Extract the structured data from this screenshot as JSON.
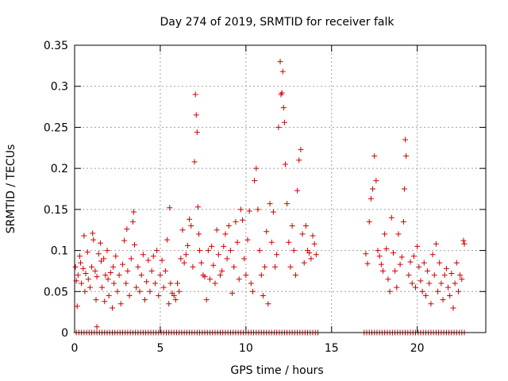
{
  "chart_data": {
    "type": "scatter",
    "title": "Day 274 of 2019, SRMTID for receiver falk",
    "xlabel": "GPS time / hours",
    "ylabel": "SRMTID / TECUs",
    "xlim": [
      0,
      24
    ],
    "ylim": [
      0,
      0.35
    ],
    "xticks": [
      0,
      5,
      10,
      15,
      20
    ],
    "xtick_labels": [
      "0",
      "5",
      "10",
      "15",
      "20"
    ],
    "yticks": [
      0,
      0.05,
      0.1,
      0.15,
      0.2,
      0.25,
      0.3,
      0.35
    ],
    "ytick_labels": [
      "0",
      "0.05",
      "0.1",
      "0.15",
      "0.2",
      "0.25",
      "0.3",
      "0.35"
    ],
    "grid": true,
    "marker": "+",
    "color": "#cc0000",
    "series": [
      {
        "name": "SRMTID",
        "points": [
          [
            0.05,
            0.08
          ],
          [
            0.1,
            0.063
          ],
          [
            0.15,
            0.032
          ],
          [
            0.2,
            0.07
          ],
          [
            0.3,
            0.093
          ],
          [
            0.35,
            0.085
          ],
          [
            0.4,
            0.06
          ],
          [
            0.5,
            0.078
          ],
          [
            0.55,
            0.118
          ],
          [
            0.6,
            0.05
          ],
          [
            0.65,
            0.072
          ],
          [
            0.75,
            0.098
          ],
          [
            0.8,
            0.065
          ],
          [
            0.9,
            0.055
          ],
          [
            1.0,
            0.08
          ],
          [
            1.05,
            0.121
          ],
          [
            1.1,
            0.113
          ],
          [
            1.2,
            0.075
          ],
          [
            1.25,
            0.04
          ],
          [
            1.3,
            0.068
          ],
          [
            1.4,
            0.096
          ],
          [
            1.5,
            0.109
          ],
          [
            1.55,
            0.087
          ],
          [
            1.6,
            0.055
          ],
          [
            1.7,
            0.09
          ],
          [
            1.75,
            0.038
          ],
          [
            1.8,
            0.07
          ],
          [
            1.9,
            0.1
          ],
          [
            1.95,
            0.065
          ],
          [
            2.0,
            0.045
          ],
          [
            2.1,
            0.073
          ],
          [
            2.2,
            0.03
          ],
          [
            2.25,
            0.08
          ],
          [
            2.3,
            0.06
          ],
          [
            2.4,
            0.093
          ],
          [
            2.5,
            0.05
          ],
          [
            2.6,
            0.07
          ],
          [
            2.7,
            0.035
          ],
          [
            2.8,
            0.083
          ],
          [
            2.9,
            0.112
          ],
          [
            3.0,
            0.06
          ],
          [
            3.05,
            0.126
          ],
          [
            3.1,
            0.075
          ],
          [
            3.2,
            0.045
          ],
          [
            3.3,
            0.09
          ],
          [
            3.4,
            0.135
          ],
          [
            3.45,
            0.147
          ],
          [
            3.5,
            0.107
          ],
          [
            3.6,
            0.055
          ],
          [
            3.7,
            0.08
          ],
          [
            3.8,
            0.05
          ],
          [
            3.9,
            0.07
          ],
          [
            4.0,
            0.095
          ],
          [
            4.1,
            0.04
          ],
          [
            4.2,
            0.062
          ],
          [
            4.3,
            0.088
          ],
          [
            4.4,
            0.05
          ],
          [
            4.5,
            0.075
          ],
          [
            4.6,
            0.093
          ],
          [
            4.7,
            0.06
          ],
          [
            4.8,
            0.1
          ],
          [
            4.9,
            0.045
          ],
          [
            5.0,
            0.07
          ],
          [
            5.1,
            0.088
          ],
          [
            5.2,
            0.055
          ],
          [
            5.3,
            0.075
          ],
          [
            5.4,
            0.113
          ],
          [
            5.5,
            0.035
          ],
          [
            5.55,
            0.152
          ],
          [
            5.6,
            0.06
          ],
          [
            5.7,
            0.048
          ],
          [
            5.8,
            0.045
          ],
          [
            5.9,
            0.04
          ],
          [
            6.0,
            0.06
          ],
          [
            6.1,
            0.05
          ],
          [
            6.2,
            0.09
          ],
          [
            6.3,
            0.125
          ],
          [
            6.4,
            0.085
          ],
          [
            6.5,
            0.095
          ],
          [
            6.6,
            0.106
          ],
          [
            6.7,
            0.138
          ],
          [
            6.8,
            0.13
          ],
          [
            6.9,
            0.08
          ],
          [
            7.0,
            0.208
          ],
          [
            7.05,
            0.29
          ],
          [
            7.1,
            0.265
          ],
          [
            7.15,
            0.244
          ],
          [
            7.2,
            0.153
          ],
          [
            7.25,
            0.12
          ],
          [
            7.3,
            0.1
          ],
          [
            7.4,
            0.085
          ],
          [
            7.5,
            0.07
          ],
          [
            7.6,
            0.068
          ],
          [
            7.7,
            0.04
          ],
          [
            7.8,
            0.1
          ],
          [
            7.9,
            0.065
          ],
          [
            8.0,
            0.105
          ],
          [
            8.1,
            0.082
          ],
          [
            8.2,
            0.06
          ],
          [
            8.3,
            0.125
          ],
          [
            8.4,
            0.095
          ],
          [
            8.5,
            0.07
          ],
          [
            8.6,
            0.075
          ],
          [
            8.7,
            0.105
          ],
          [
            8.8,
            0.12
          ],
          [
            8.9,
            0.09
          ],
          [
            9.0,
            0.13
          ],
          [
            9.1,
            0.1
          ],
          [
            9.2,
            0.048
          ],
          [
            9.3,
            0.08
          ],
          [
            9.4,
            0.135
          ],
          [
            9.5,
            0.11
          ],
          [
            9.6,
            0.065
          ],
          [
            9.7,
            0.15
          ],
          [
            9.8,
            0.137
          ],
          [
            9.9,
            0.09
          ],
          [
            10.0,
            0.07
          ],
          [
            10.1,
            0.113
          ],
          [
            10.2,
            0.148
          ],
          [
            10.3,
            0.06
          ],
          [
            10.4,
            0.05
          ],
          [
            10.5,
            0.185
          ],
          [
            10.6,
            0.2
          ],
          [
            10.7,
            0.15
          ],
          [
            10.8,
            0.1
          ],
          [
            10.9,
            0.07
          ],
          [
            11.0,
            0.045
          ],
          [
            11.1,
            0.08
          ],
          [
            11.2,
            0.123
          ],
          [
            11.3,
            0.035
          ],
          [
            11.4,
            0.157
          ],
          [
            11.5,
            0.11
          ],
          [
            11.6,
            0.147
          ],
          [
            11.7,
            0.08
          ],
          [
            11.8,
            0.095
          ],
          [
            11.9,
            0.25
          ],
          [
            12.0,
            0.33
          ],
          [
            12.05,
            0.29
          ],
          [
            12.1,
            0.292
          ],
          [
            12.15,
            0.318
          ],
          [
            12.2,
            0.274
          ],
          [
            12.25,
            0.256
          ],
          [
            12.3,
            0.205
          ],
          [
            12.4,
            0.157
          ],
          [
            12.5,
            0.11
          ],
          [
            12.6,
            0.08
          ],
          [
            12.7,
            0.13
          ],
          [
            12.8,
            0.1
          ],
          [
            12.9,
            0.07
          ],
          [
            13.0,
            0.173
          ],
          [
            13.1,
            0.21
          ],
          [
            13.2,
            0.223
          ],
          [
            13.3,
            0.12
          ],
          [
            13.4,
            0.085
          ],
          [
            13.5,
            0.13
          ],
          [
            13.6,
            0.1
          ],
          [
            13.7,
            0.097
          ],
          [
            13.8,
            0.09
          ],
          [
            13.9,
            0.118
          ],
          [
            14.0,
            0.108
          ],
          [
            14.1,
            0.095
          ],
          [
            17.0,
            0.096
          ],
          [
            17.1,
            0.084
          ],
          [
            17.2,
            0.135
          ],
          [
            17.3,
            0.163
          ],
          [
            17.4,
            0.175
          ],
          [
            17.5,
            0.215
          ],
          [
            17.6,
            0.185
          ],
          [
            17.7,
            0.1
          ],
          [
            17.8,
            0.093
          ],
          [
            17.9,
            0.083
          ],
          [
            18.0,
            0.075
          ],
          [
            18.1,
            0.12
          ],
          [
            18.2,
            0.102
          ],
          [
            18.3,
            0.065
          ],
          [
            18.4,
            0.05
          ],
          [
            18.5,
            0.14
          ],
          [
            18.6,
            0.097
          ],
          [
            18.7,
            0.075
          ],
          [
            18.8,
            0.055
          ],
          [
            18.9,
            0.12
          ],
          [
            19.0,
            0.083
          ],
          [
            19.1,
            0.092
          ],
          [
            19.2,
            0.135
          ],
          [
            19.25,
            0.175
          ],
          [
            19.3,
            0.235
          ],
          [
            19.35,
            0.215
          ],
          [
            19.5,
            0.07
          ],
          [
            19.6,
            0.086
          ],
          [
            19.7,
            0.06
          ],
          [
            19.8,
            0.093
          ],
          [
            19.9,
            0.055
          ],
          [
            20.0,
            0.105
          ],
          [
            20.1,
            0.08
          ],
          [
            20.2,
            0.063
          ],
          [
            20.3,
            0.05
          ],
          [
            20.4,
            0.085
          ],
          [
            20.5,
            0.045
          ],
          [
            20.6,
            0.075
          ],
          [
            20.7,
            0.06
          ],
          [
            20.8,
            0.035
          ],
          [
            20.9,
            0.095
          ],
          [
            21.0,
            0.07
          ],
          [
            21.1,
            0.108
          ],
          [
            21.2,
            0.05
          ],
          [
            21.3,
            0.085
          ],
          [
            21.4,
            0.06
          ],
          [
            21.5,
            0.04
          ],
          [
            21.6,
            0.07
          ],
          [
            21.7,
            0.078
          ],
          [
            21.8,
            0.055
          ],
          [
            21.9,
            0.045
          ],
          [
            22.0,
            0.072
          ],
          [
            22.1,
            0.03
          ],
          [
            22.2,
            0.06
          ],
          [
            22.3,
            0.085
          ],
          [
            22.4,
            0.05
          ],
          [
            22.5,
            0.07
          ],
          [
            22.6,
            0.065
          ],
          [
            22.7,
            0.112
          ],
          [
            22.75,
            0.108
          ]
        ]
      },
      {
        "name": "zero baseline",
        "x_start": 0.1,
        "x_end": 22.8,
        "x_step": 0.15,
        "gaps": [
          [
            14.3,
            16.9
          ]
        ],
        "y": 0
      }
    ],
    "annotations": [
      {
        "x": 1.3,
        "y": 0.007,
        "label": ""
      }
    ]
  }
}
